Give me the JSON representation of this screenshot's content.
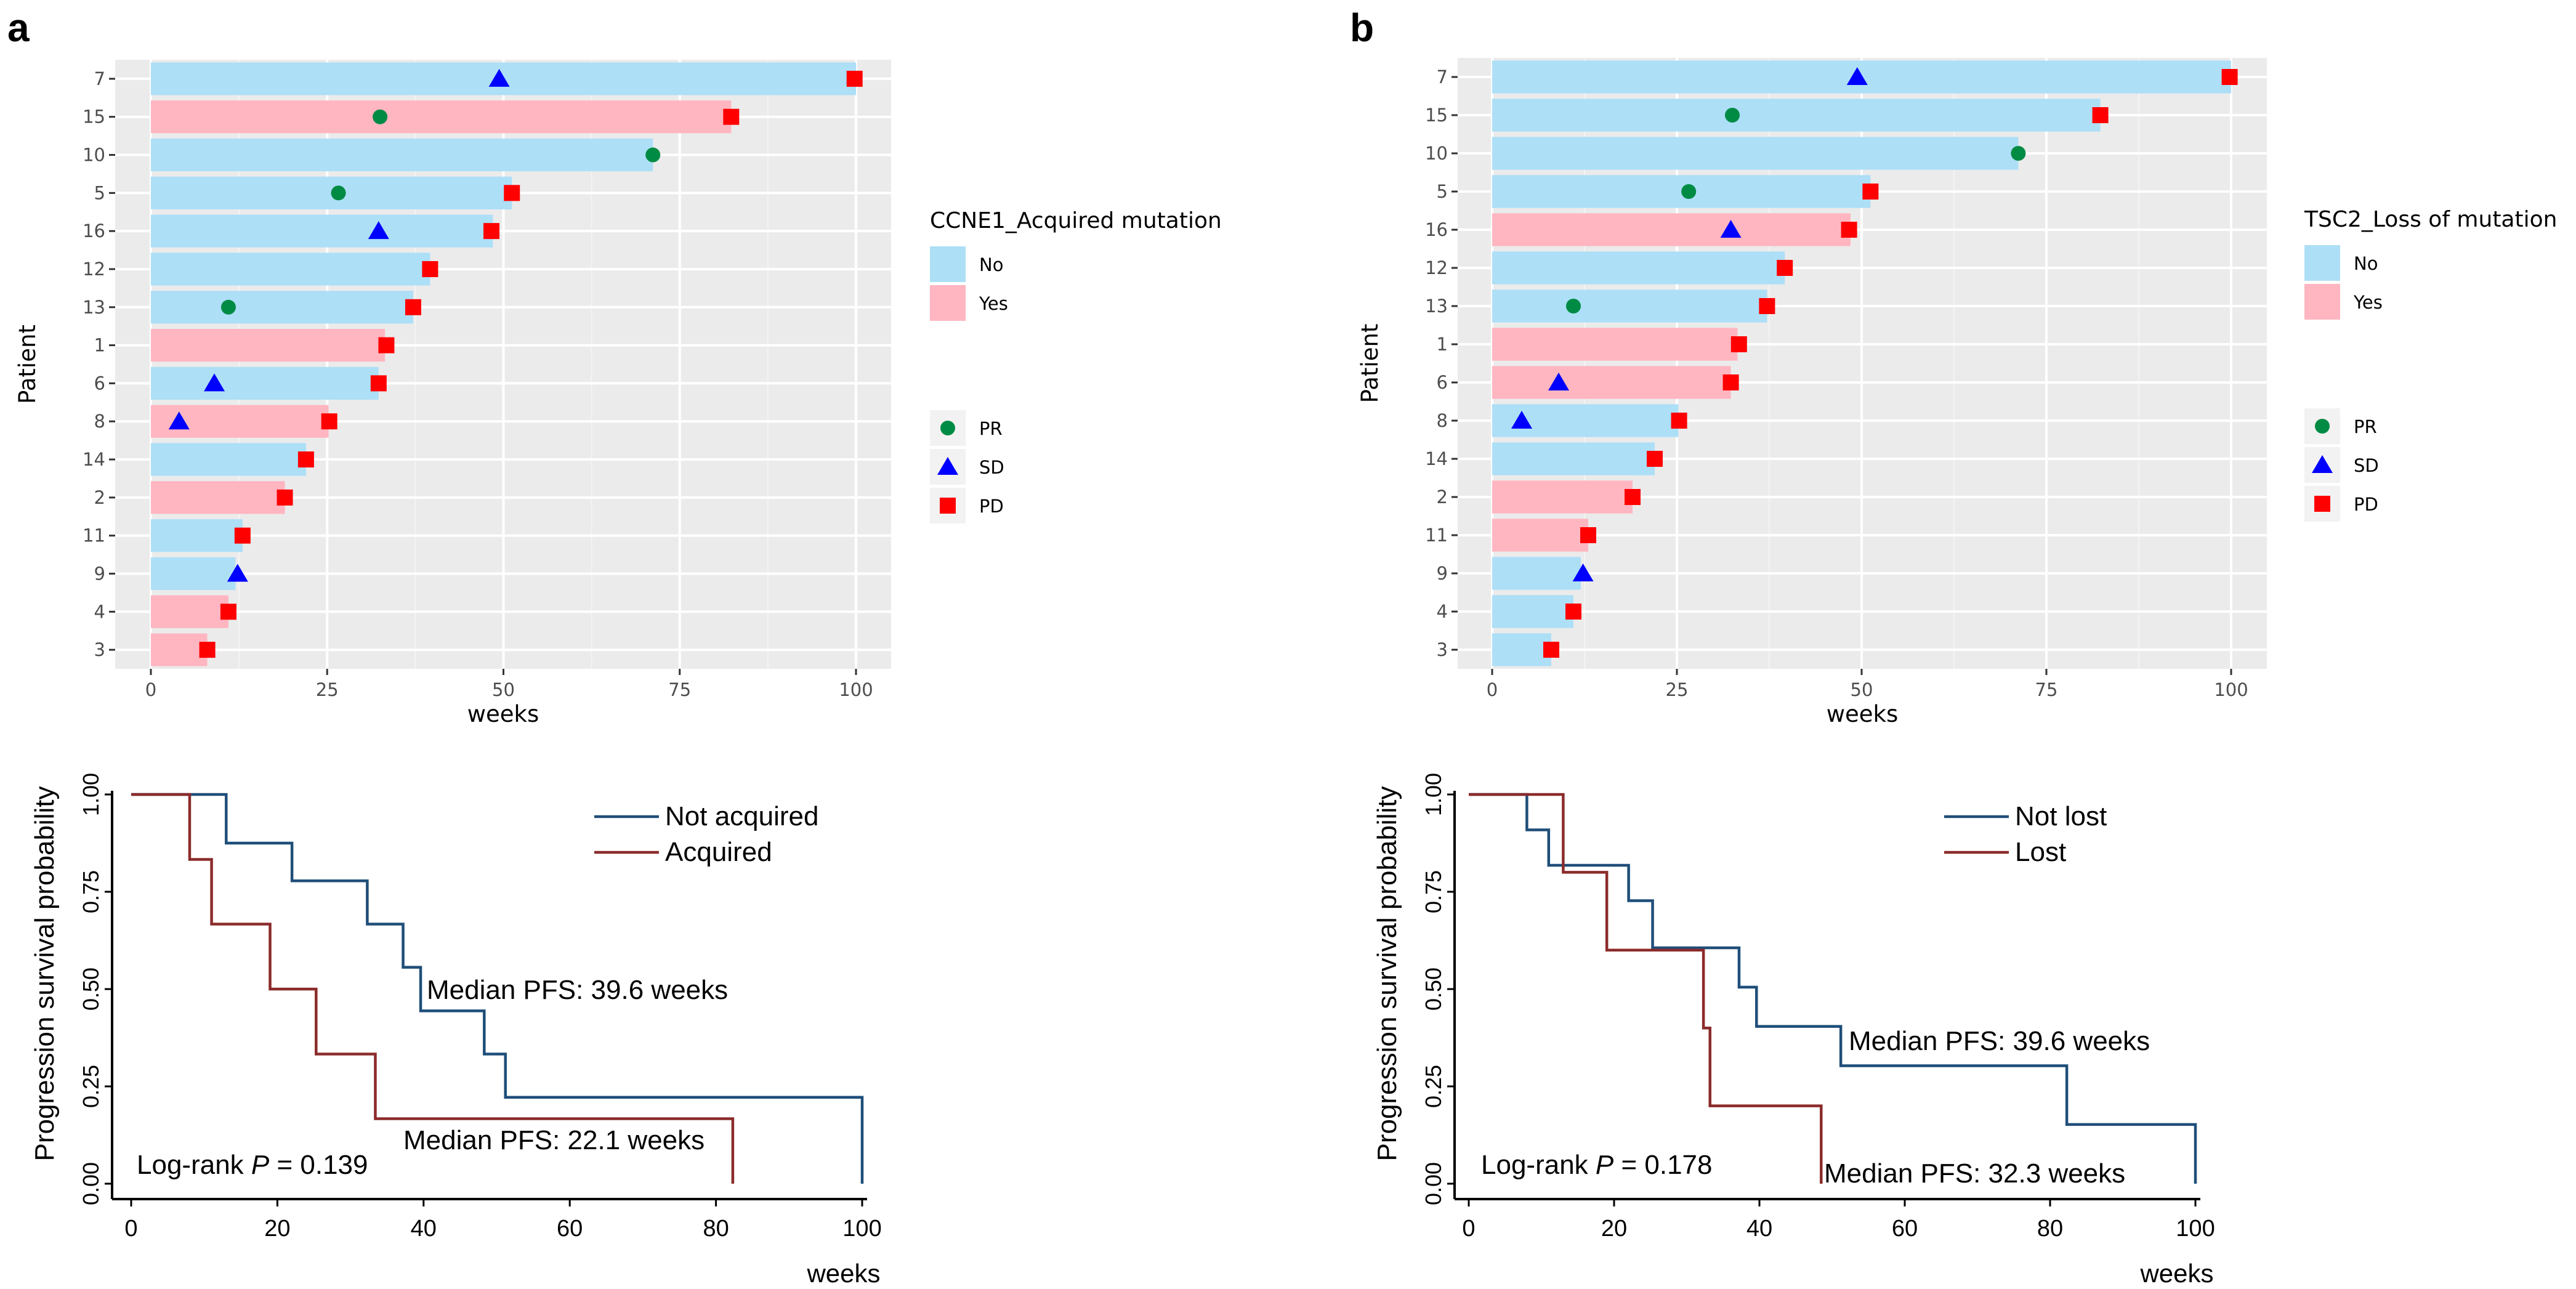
{
  "figure": {
    "panels": [
      {
        "label": "a"
      },
      {
        "label": "b"
      }
    ]
  },
  "chart_data": [
    {
      "id": "a-swimmer",
      "panel": "a",
      "type": "bar",
      "orientation": "horizontal",
      "title": "",
      "xlabel": "weeks",
      "ylabel": "Patient",
      "xlim": [
        0,
        100
      ],
      "xticks": [
        0,
        25,
        50,
        75,
        100
      ],
      "categories": [
        "7",
        "15",
        "10",
        "5",
        "16",
        "12",
        "13",
        "1",
        "6",
        "8",
        "14",
        "2",
        "11",
        "9",
        "4",
        "3"
      ],
      "values": [
        100,
        82.3,
        71.2,
        51.2,
        48.5,
        39.6,
        37.2,
        33.2,
        32.3,
        25.2,
        22.0,
        19.0,
        13.0,
        12.0,
        11.0,
        8.0
      ],
      "groups": [
        "No",
        "Yes",
        "No",
        "No",
        "No",
        "No",
        "No",
        "Yes",
        "No",
        "Yes",
        "No",
        "Yes",
        "No",
        "No",
        "Yes",
        "Yes"
      ],
      "fill_legend_title": "CCNE1_Acquired mutation",
      "fill_legend": [
        {
          "label": "No",
          "color": "#ADDFF7"
        },
        {
          "label": "Yes",
          "color": "#FFB6C1"
        }
      ],
      "marker_legend": [
        {
          "label": "PR",
          "shape": "circle",
          "color": "#008B45"
        },
        {
          "label": "SD",
          "shape": "triangle",
          "color": "#0000FF"
        },
        {
          "label": "PD",
          "shape": "square",
          "color": "#FF0000"
        }
      ],
      "markers": [
        {
          "patient": "7",
          "type": "SD",
          "x": 49.4
        },
        {
          "patient": "7",
          "type": "PD",
          "x": 99.8
        },
        {
          "patient": "15",
          "type": "PR",
          "x": 32.5
        },
        {
          "patient": "15",
          "type": "PD",
          "x": 82.3
        },
        {
          "patient": "10",
          "type": "PR",
          "x": 71.2
        },
        {
          "patient": "5",
          "type": "PR",
          "x": 26.6
        },
        {
          "patient": "5",
          "type": "PD",
          "x": 51.2
        },
        {
          "patient": "16",
          "type": "SD",
          "x": 32.3
        },
        {
          "patient": "16",
          "type": "PD",
          "x": 48.3
        },
        {
          "patient": "12",
          "type": "PD",
          "x": 39.6
        },
        {
          "patient": "13",
          "type": "PR",
          "x": 11.0
        },
        {
          "patient": "13",
          "type": "PD",
          "x": 37.2
        },
        {
          "patient": "1",
          "type": "PD",
          "x": 33.4
        },
        {
          "patient": "6",
          "type": "SD",
          "x": 9.0
        },
        {
          "patient": "6",
          "type": "PD",
          "x": 32.3
        },
        {
          "patient": "8",
          "type": "SD",
          "x": 4.0
        },
        {
          "patient": "8",
          "type": "PD",
          "x": 25.3
        },
        {
          "patient": "14",
          "type": "PD",
          "x": 22.0
        },
        {
          "patient": "2",
          "type": "PD",
          "x": 19.0
        },
        {
          "patient": "11",
          "type": "PD",
          "x": 13.0
        },
        {
          "patient": "9",
          "type": "SD",
          "x": 12.3
        },
        {
          "patient": "4",
          "type": "PD",
          "x": 11.0
        },
        {
          "patient": "3",
          "type": "PD",
          "x": 8.0
        }
      ]
    },
    {
      "id": "a-km",
      "panel": "a",
      "type": "line",
      "subtype": "step",
      "xlabel": "weeks",
      "ylabel": "Progression survival probability",
      "xlim": [
        0,
        100
      ],
      "ylim": [
        0,
        1
      ],
      "xticks": [
        0,
        20,
        40,
        60,
        80,
        100
      ],
      "yticks": [
        "0.00",
        "0.25",
        "0.50",
        "0.75",
        "1.00"
      ],
      "series": [
        {
          "name": "Not acquired",
          "color": "#1F4E79",
          "x": [
            0,
            13,
            22,
            32.3,
            37.2,
            39.6,
            48.3,
            51.2,
            100
          ],
          "y": [
            1,
            0.875,
            0.778,
            0.667,
            0.556,
            0.444,
            0.333,
            0.222,
            0
          ]
        },
        {
          "name": "Acquired",
          "color": "#8B2B2B",
          "x": [
            0,
            8,
            11,
            19,
            25.3,
            33.4,
            82.3
          ],
          "y": [
            1,
            0.833,
            0.667,
            0.5,
            0.333,
            0.167,
            0
          ]
        }
      ],
      "annotations": [
        "Median PFS: 39.6 weeks",
        "Median PFS: 22.1 weeks"
      ],
      "logrank_prefix": "Log-rank ",
      "logrank_p_label": "P",
      "logrank_value": " = 0.139"
    },
    {
      "id": "b-swimmer",
      "panel": "b",
      "type": "bar",
      "orientation": "horizontal",
      "title": "",
      "xlabel": "weeks",
      "ylabel": "Patient",
      "xlim": [
        0,
        100
      ],
      "xticks": [
        0,
        25,
        50,
        75,
        100
      ],
      "categories": [
        "7",
        "15",
        "10",
        "5",
        "16",
        "12",
        "13",
        "1",
        "6",
        "8",
        "14",
        "2",
        "11",
        "9",
        "4",
        "3"
      ],
      "values": [
        100,
        82.3,
        71.2,
        51.2,
        48.5,
        39.6,
        37.2,
        33.2,
        32.3,
        25.2,
        22.0,
        19.0,
        13.0,
        12.0,
        11.0,
        8.0
      ],
      "groups": [
        "No",
        "No",
        "No",
        "No",
        "Yes",
        "No",
        "No",
        "Yes",
        "Yes",
        "No",
        "No",
        "Yes",
        "Yes",
        "No",
        "No",
        "No"
      ],
      "fill_legend_title": "TSC2_Loss of mutation",
      "fill_legend": [
        {
          "label": "No",
          "color": "#ADDFF7"
        },
        {
          "label": "Yes",
          "color": "#FFB6C1"
        }
      ],
      "marker_legend": [
        {
          "label": "PR",
          "shape": "circle",
          "color": "#008B45"
        },
        {
          "label": "SD",
          "shape": "triangle",
          "color": "#0000FF"
        },
        {
          "label": "PD",
          "shape": "square",
          "color": "#FF0000"
        }
      ],
      "markers": [
        {
          "patient": "7",
          "type": "SD",
          "x": 49.4
        },
        {
          "patient": "7",
          "type": "PD",
          "x": 99.8
        },
        {
          "patient": "15",
          "type": "PR",
          "x": 32.5
        },
        {
          "patient": "15",
          "type": "PD",
          "x": 82.3
        },
        {
          "patient": "10",
          "type": "PR",
          "x": 71.2
        },
        {
          "patient": "5",
          "type": "PR",
          "x": 26.6
        },
        {
          "patient": "5",
          "type": "PD",
          "x": 51.2
        },
        {
          "patient": "16",
          "type": "SD",
          "x": 32.3
        },
        {
          "patient": "16",
          "type": "PD",
          "x": 48.3
        },
        {
          "patient": "12",
          "type": "PD",
          "x": 39.6
        },
        {
          "patient": "13",
          "type": "PR",
          "x": 11.0
        },
        {
          "patient": "13",
          "type": "PD",
          "x": 37.2
        },
        {
          "patient": "1",
          "type": "PD",
          "x": 33.4
        },
        {
          "patient": "6",
          "type": "SD",
          "x": 9.0
        },
        {
          "patient": "6",
          "type": "PD",
          "x": 32.3
        },
        {
          "patient": "8",
          "type": "SD",
          "x": 4.0
        },
        {
          "patient": "8",
          "type": "PD",
          "x": 25.3
        },
        {
          "patient": "14",
          "type": "PD",
          "x": 22.0
        },
        {
          "patient": "2",
          "type": "PD",
          "x": 19.0
        },
        {
          "patient": "11",
          "type": "PD",
          "x": 13.0
        },
        {
          "patient": "9",
          "type": "SD",
          "x": 12.3
        },
        {
          "patient": "4",
          "type": "PD",
          "x": 11.0
        },
        {
          "patient": "3",
          "type": "PD",
          "x": 8.0
        }
      ]
    },
    {
      "id": "b-km",
      "panel": "b",
      "type": "line",
      "subtype": "step",
      "xlabel": "weeks",
      "ylabel": "Progression survival probability",
      "xlim": [
        0,
        100
      ],
      "ylim": [
        0,
        1
      ],
      "xticks": [
        0,
        20,
        40,
        60,
        80,
        100
      ],
      "yticks": [
        "0.00",
        "0.25",
        "0.50",
        "0.75",
        "1.00"
      ],
      "series": [
        {
          "name": "Not lost",
          "color": "#1F4E79",
          "x": [
            0,
            8,
            11,
            22,
            25.3,
            37.2,
            39.6,
            51.2,
            82.3,
            100
          ],
          "y": [
            1,
            0.909,
            0.818,
            0.727,
            0.606,
            0.505,
            0.404,
            0.303,
            0.152,
            0
          ]
        },
        {
          "name": "Lost",
          "color": "#8B2B2B",
          "x": [
            0,
            13,
            19,
            32.3,
            33.2,
            48.5
          ],
          "y": [
            1,
            0.8,
            0.6,
            0.4,
            0.2,
            0
          ]
        }
      ],
      "annotations": [
        "Median PFS: 39.6 weeks",
        "Median PFS: 32.3 weeks"
      ],
      "logrank_prefix": "Log-rank ",
      "logrank_p_label": "P",
      "logrank_value": " = 0.178"
    }
  ]
}
